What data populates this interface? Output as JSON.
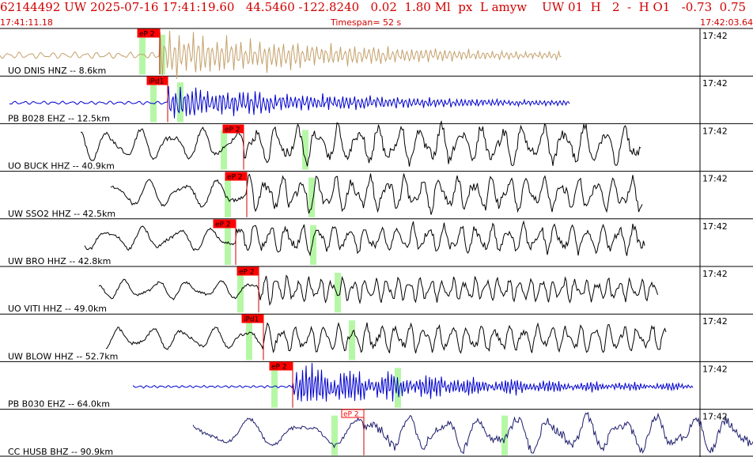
{
  "header": {
    "title": "62144492 UW 2025-07-16 17:41:19.60   44.5460 -122.8240   0.02  1.80 Ml  px  L amyw    UW 01  H   2  -  H O1   -0.73  0.75",
    "start_time": "17:41:11.18",
    "timespan": "Timespan=  52 s",
    "end_time": "17:42:03.64"
  },
  "colors": {
    "header_red": "#d00000",
    "pick_box": "#ff0000",
    "pick_line": "#cc0000",
    "green_band": "#b6f7a6",
    "tan": "#c4a06a",
    "blue": "#0000d0",
    "black": "#000000",
    "navy": "#1c1c6e"
  },
  "traces": [
    {
      "label": "UO DNIS HNZ -- 8.6km",
      "time": "17:42",
      "pick": "eP 2",
      "color": "tan"
    },
    {
      "label": "PB B028 EHZ -- 12.5km",
      "time": "17:42",
      "pick": "iPd1",
      "color": "blue"
    },
    {
      "label": "UO BUCK HHZ -- 40.9km",
      "time": "17:42",
      "pick": "eP 2",
      "color": "black"
    },
    {
      "label": "UW SSO2 HHZ -- 42.5km",
      "time": "17:42",
      "pick": "eP 2",
      "color": "black"
    },
    {
      "label": "UW BRO HHZ -- 42.8km",
      "time": "17:42",
      "pick": "eP 2",
      "color": "black"
    },
    {
      "label": "UO VITI HHZ -- 49.0km",
      "time": "17:42",
      "pick": "eP 2",
      "color": "black"
    },
    {
      "label": "UW BLOW HHZ -- 52.7km",
      "time": "17:42",
      "pick": "iPd1",
      "color": "black"
    },
    {
      "label": "PB B030 EHZ -- 64.0km",
      "time": "17:42",
      "pick": "eP 2",
      "color": "blue"
    },
    {
      "label": "CC HUSB BHZ -- 90.9km",
      "time": "17:42",
      "pick": "eP 2",
      "color": "navy"
    }
  ]
}
